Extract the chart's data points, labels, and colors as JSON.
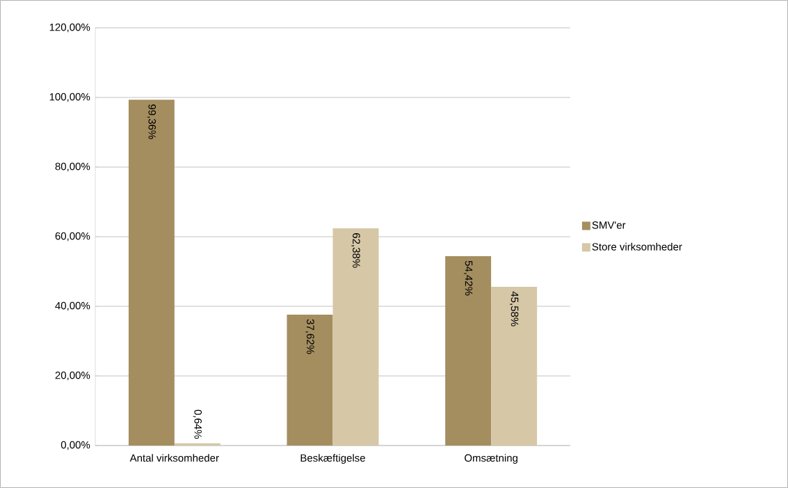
{
  "chart_data": {
    "type": "bar",
    "categories": [
      "Antal virksomheder",
      "Beskæftigelse",
      "Omsætning"
    ],
    "series": [
      {
        "name": "SMV'er",
        "color": "#a48e5f",
        "values": [
          99.36,
          37.62,
          54.42
        ],
        "value_labels": [
          "99,36%",
          "37,62%",
          "54,42%"
        ]
      },
      {
        "name": "Store virksomheder",
        "color": "#d6c7a7",
        "values": [
          0.64,
          62.38,
          45.58
        ],
        "value_labels": [
          "0,64%",
          "62,38%",
          "45,58%"
        ]
      }
    ],
    "ylim": [
      0,
      120
    ],
    "yticks": [
      {
        "value": 0,
        "label": "0,00%"
      },
      {
        "value": 20,
        "label": "20,00%"
      },
      {
        "value": 40,
        "label": "40,00%"
      },
      {
        "value": 60,
        "label": "60,00%"
      },
      {
        "value": 80,
        "label": "80,00%"
      },
      {
        "value": 100,
        "label": "100,00%"
      },
      {
        "value": 120,
        "label": "120,00%"
      }
    ],
    "grid": "y",
    "legend": "right"
  }
}
